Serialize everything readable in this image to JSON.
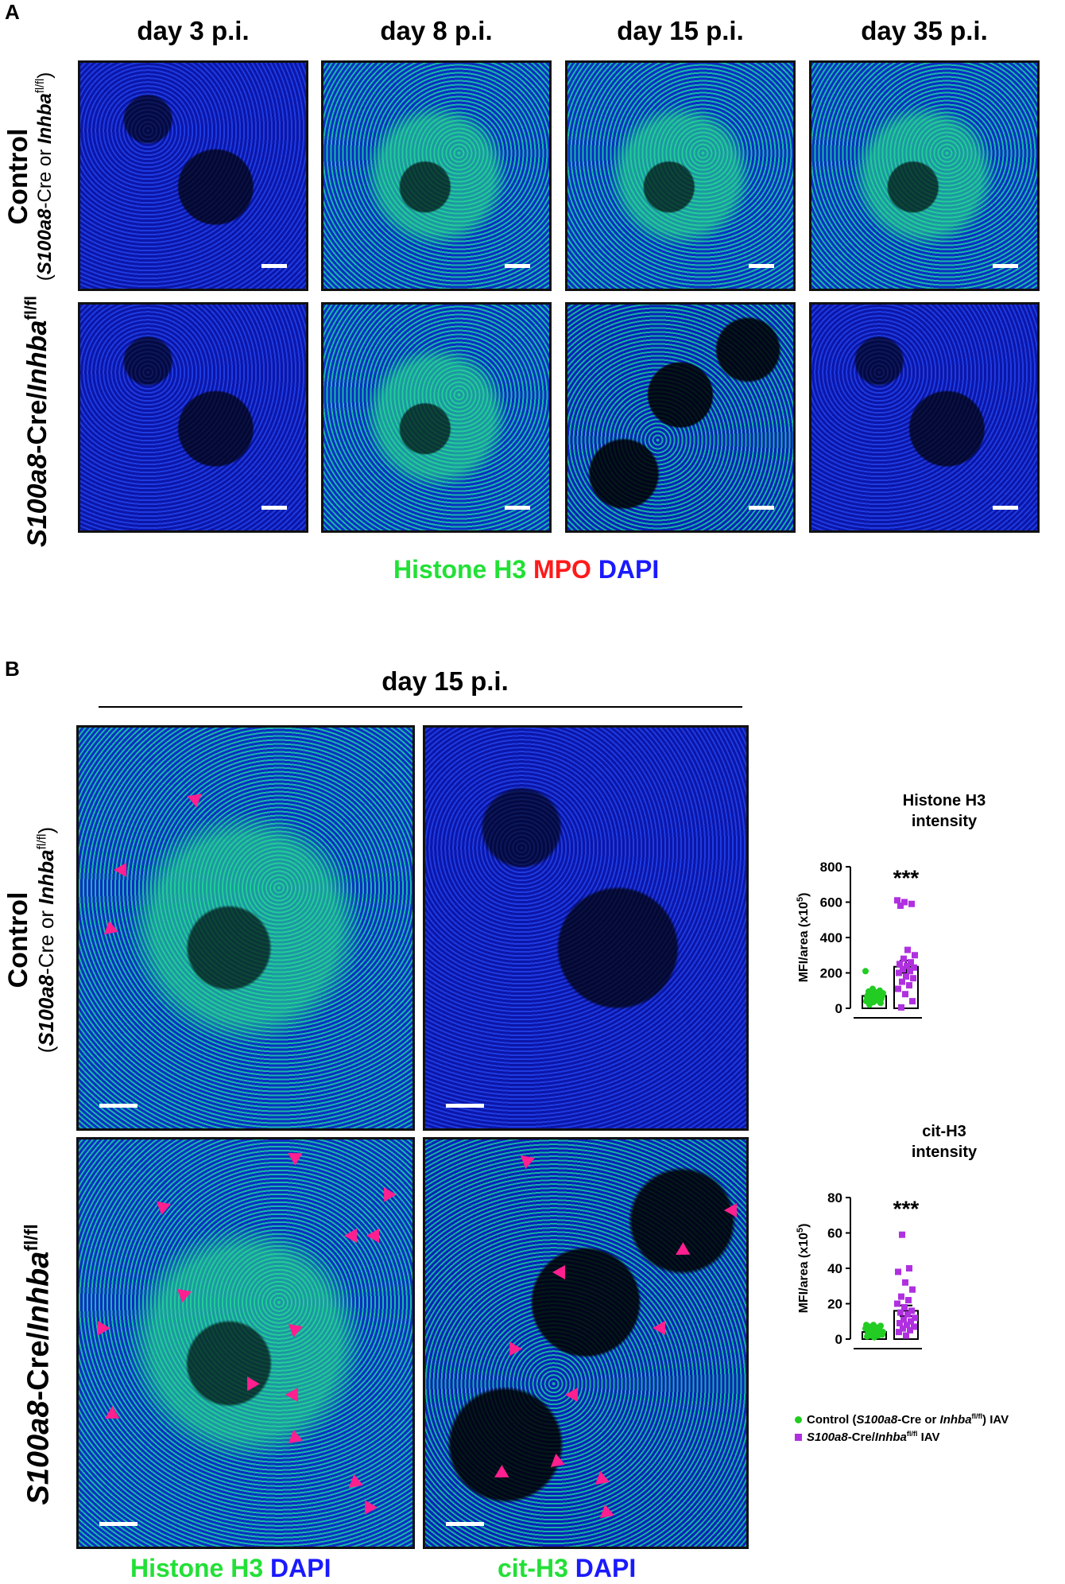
{
  "figure": {
    "panel_a_letter": "A",
    "panel_b_letter": "B",
    "panel_a": {
      "columns": [
        "day 3 p.i.",
        "day 8 p.i.",
        "day 15 p.i.",
        "day 35 p.i."
      ],
      "row1": {
        "title": "Control",
        "sub_pre": "(",
        "sub_gene1": "S100a8",
        "sub_mid": "-Cre or ",
        "sub_gene2": "Inhba",
        "sub_sup": "fl/fl",
        "sub_post": ")"
      },
      "row2": {
        "gene1": "S100a8",
        "mid": "-Cre/",
        "gene2": "Inhba",
        "sup": "fl/fl"
      },
      "stain": {
        "h3": "Histone H3",
        "mpo": "MPO",
        "dapi": "DAPI"
      }
    },
    "panel_b": {
      "header": "day 15 p.i.",
      "row1": {
        "title": "Control",
        "sub_pre": "(",
        "sub_gene1": "S100a8",
        "sub_mid": "-Cre or ",
        "sub_gene2": "Inhba",
        "sub_sup": "fl/fl",
        "sub_post": ")"
      },
      "row2": {
        "gene1": "S100a8",
        "mid": "-Cre/",
        "gene2": "Inhba",
        "sup": "fl/fl"
      },
      "stain_left": {
        "a": "Histone H3",
        "b": "DAPI"
      },
      "stain_right": {
        "a": "cit-H3",
        "b": "DAPI"
      }
    },
    "legend": {
      "control_pre": "Control (",
      "control_gene1": "S100a8",
      "control_mid": "-Cre or ",
      "control_gene2": "Inhba",
      "control_sup": "fl/fl",
      "control_post": ") IAV",
      "ko_gene1": "S100a8",
      "ko_mid": "-Cre/",
      "ko_gene2": "Inhba",
      "ko_sup": "fl/fl",
      "ko_post": " IAV"
    },
    "colors": {
      "control": "#22cc22",
      "knockout": "#b030e0",
      "arrowhead": "#ff1f8f"
    }
  },
  "chart_data": [
    {
      "type": "bar",
      "title": "Histone H3\nintensity",
      "ylabel": "MFI/area (x10^5)",
      "ylim": [
        0,
        800
      ],
      "yticks": [
        "0",
        "200",
        "400",
        "600",
        "800"
      ],
      "significance": "***",
      "categories": [
        "Control",
        "S100a8-Cre/Inhba fl/fl"
      ],
      "series": [
        {
          "name": "Control",
          "color": "#22cc22",
          "mean": 70,
          "sem": 12,
          "points": [
            20,
            30,
            35,
            40,
            45,
            50,
            55,
            60,
            62,
            65,
            68,
            70,
            72,
            75,
            78,
            80,
            85,
            90,
            95,
            100,
            110,
            210
          ]
        },
        {
          "name": "S100a8-Cre/Inhba fl/fl",
          "color": "#b030e0",
          "mean": 235,
          "sem": 35,
          "points": [
            5,
            40,
            80,
            110,
            130,
            150,
            170,
            180,
            200,
            210,
            220,
            230,
            240,
            250,
            260,
            280,
            300,
            330,
            580,
            590,
            600,
            610
          ]
        }
      ]
    },
    {
      "type": "bar",
      "title": "cit-H3\nintensity",
      "ylabel": "MFI/area (x10^5)",
      "ylim": [
        0,
        80
      ],
      "yticks": [
        "0",
        "20",
        "40",
        "60",
        "80"
      ],
      "significance": "***",
      "categories": [
        "Control",
        "S100a8-Cre/Inhba fl/fl"
      ],
      "series": [
        {
          "name": "Control",
          "color": "#22cc22",
          "mean": 4,
          "sem": 1,
          "points": [
            1,
            1.5,
            2,
            2,
            2.5,
            3,
            3,
            3.5,
            4,
            4,
            4.5,
            5,
            5,
            5.5,
            6,
            6.5,
            7,
            7.5,
            8,
            8
          ]
        },
        {
          "name": "S100a8-Cre/Inhba fl/fl",
          "color": "#b030e0",
          "mean": 16,
          "sem": 3,
          "points": [
            2,
            4,
            5,
            6,
            7,
            8,
            9,
            10,
            11,
            12,
            14,
            15,
            16,
            18,
            20,
            22,
            24,
            28,
            32,
            38,
            40,
            59
          ]
        }
      ]
    }
  ]
}
